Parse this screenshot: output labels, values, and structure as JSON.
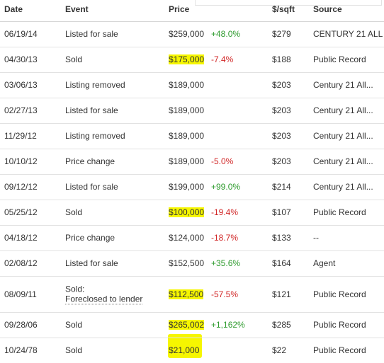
{
  "table": {
    "headers": {
      "date": "Date",
      "event": "Event",
      "price": "Price",
      "sqft": "$/sqft",
      "source": "Source"
    },
    "rows": [
      {
        "date": "06/19/14",
        "event": "Listed for sale",
        "event2": "",
        "price": "$259,000",
        "change": "+48.0%",
        "sqft": "$279",
        "source": "CENTURY 21 ALL"
      },
      {
        "date": "04/30/13",
        "event": "Sold",
        "event2": "",
        "price": "$175,000",
        "change": "-7.4%",
        "sqft": "$188",
        "source": "Public Record"
      },
      {
        "date": "03/06/13",
        "event": "Listing removed",
        "event2": "",
        "price": "$189,000",
        "change": "",
        "sqft": "$203",
        "source": "Century 21 All..."
      },
      {
        "date": "02/27/13",
        "event": "Listed for sale",
        "event2": "",
        "price": "$189,000",
        "change": "",
        "sqft": "$203",
        "source": "Century 21 All..."
      },
      {
        "date": "11/29/12",
        "event": "Listing removed",
        "event2": "",
        "price": "$189,000",
        "change": "",
        "sqft": "$203",
        "source": "Century 21 All..."
      },
      {
        "date": "10/10/12",
        "event": "Price change",
        "event2": "",
        "price": "$189,000",
        "change": "-5.0%",
        "sqft": "$203",
        "source": "Century 21 All..."
      },
      {
        "date": "09/12/12",
        "event": "Listed for sale",
        "event2": "",
        "price": "$199,000",
        "change": "+99.0%",
        "sqft": "$214",
        "source": "Century 21 All..."
      },
      {
        "date": "05/25/12",
        "event": "Sold",
        "event2": "",
        "price": "$100,000",
        "change": "-19.4%",
        "sqft": "$107",
        "source": "Public Record"
      },
      {
        "date": "04/18/12",
        "event": "Price change",
        "event2": "",
        "price": "$124,000",
        "change": "-18.7%",
        "sqft": "$133",
        "source": "--"
      },
      {
        "date": "02/08/12",
        "event": "Listed for sale",
        "event2": "",
        "price": "$152,500",
        "change": "+35.6%",
        "sqft": "$164",
        "source": "Agent"
      },
      {
        "date": "08/09/11",
        "event": "Sold:",
        "event2": "Foreclosed to lender",
        "price": "$112,500",
        "change": "-57.5%",
        "sqft": "$121",
        "source": "Public Record"
      },
      {
        "date": "09/28/06",
        "event": "Sold",
        "event2": "",
        "price": "$265,002",
        "change": "+1,162%",
        "sqft": "$285",
        "source": "Public Record"
      },
      {
        "date": "10/24/78",
        "event": "Sold",
        "event2": "",
        "price": "$21,000",
        "change": "",
        "sqft": "$22",
        "source": "Public Record"
      }
    ]
  },
  "colors": {
    "positive": "#2e9b2e",
    "negative": "#d12727",
    "highlight": "#f6f600"
  }
}
